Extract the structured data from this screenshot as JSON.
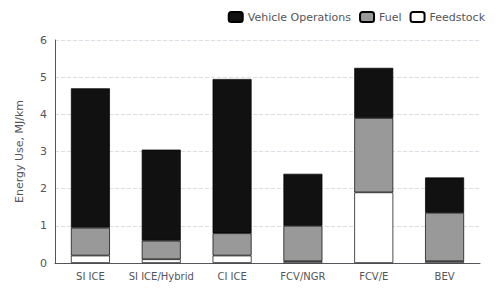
{
  "chart_data": {
    "type": "bar",
    "stacked": true,
    "categories": [
      "SI ICE",
      "SI ICE/Hybrid",
      "CI ICE",
      "FCV/NGR",
      "FCV/E",
      "BEV"
    ],
    "series": [
      {
        "name": "Feedstock",
        "color": "#ffffff",
        "values": [
          0.2,
          0.1,
          0.2,
          0.05,
          1.9,
          0.05
        ]
      },
      {
        "name": "Fuel",
        "color": "#999999",
        "values": [
          0.75,
          0.5,
          0.6,
          0.95,
          2.0,
          1.3
        ]
      },
      {
        "name": "Vehicle Operations",
        "color": "#111111",
        "values": [
          3.75,
          2.45,
          4.15,
          1.4,
          1.35,
          0.95
        ]
      }
    ],
    "ylabel": "Energy Use, MJ/km",
    "ylim": [
      0,
      6
    ],
    "yticks": [
      0,
      1,
      2,
      3,
      4,
      5,
      6
    ],
    "grid": true,
    "legend": "upper right"
  }
}
